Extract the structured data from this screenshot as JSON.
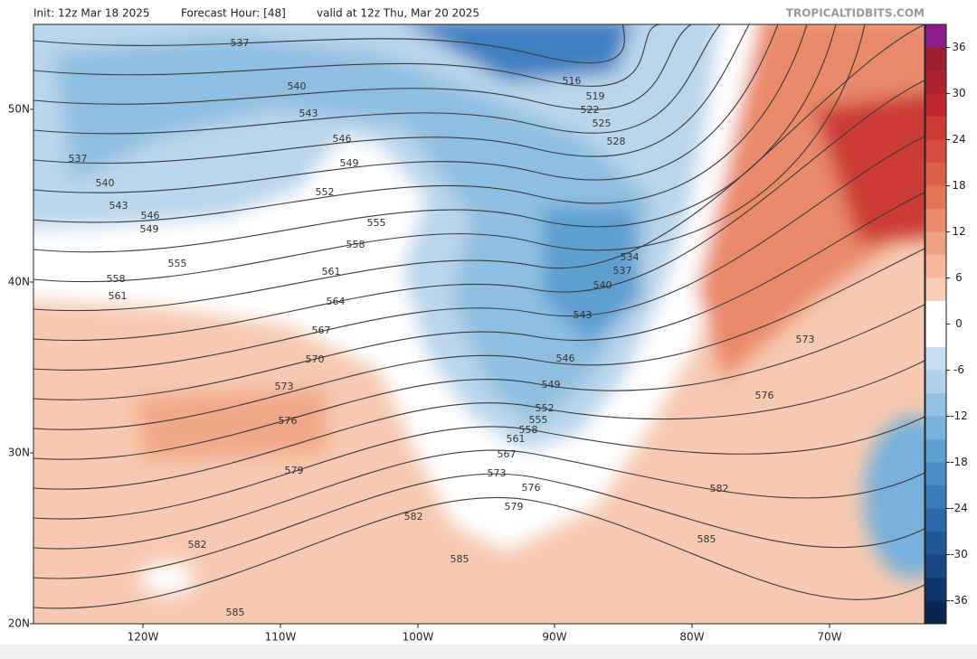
{
  "header": {
    "init": "Init: 12z Mar 18 2025",
    "forecast_hour": "Forecast Hour: [48]",
    "valid": "valid at 12z Thu, Mar 20 2025",
    "watermark": "TROPICALTIDBITS.COM"
  },
  "map": {
    "lat_labels": [
      "50N",
      "40N",
      "30N",
      "20N"
    ],
    "lon_labels": [
      "120W",
      "110W",
      "100W",
      "90W",
      "80W",
      "70W"
    ],
    "contour_labels": [
      537,
      540,
      543,
      546,
      549,
      552,
      555,
      558,
      561,
      564,
      567,
      570,
      573,
      576,
      579,
      582,
      585,
      582,
      585,
      537,
      540,
      543,
      546,
      549,
      555,
      558,
      561,
      516,
      519,
      522,
      525,
      528,
      534,
      537,
      540,
      543,
      546,
      549,
      552,
      555,
      558,
      561,
      567,
      573,
      576,
      579,
      582,
      585,
      573,
      576
    ]
  },
  "colorbar": {
    "lim": [
      -39,
      39
    ],
    "ticks": [
      36,
      30,
      24,
      18,
      12,
      6,
      0,
      -6,
      -12,
      -18,
      -24,
      -30,
      -36
    ],
    "colors": [
      "#0b2552",
      "#10356b",
      "#184681",
      "#225896",
      "#2d69a8",
      "#3a7bb8",
      "#4a8dc4",
      "#5d9fcf",
      "#78b1da",
      "#94c2e2",
      "#b0d1ea",
      "#c7dff0",
      "#ffffff",
      "#ffffff",
      "#f8cdb7",
      "#f4b89c",
      "#efa282",
      "#e98a6a",
      "#e27458",
      "#dc6049",
      "#d54c3f",
      "#cc3a36",
      "#c0282f",
      "#ae2230",
      "#9c1d2b",
      "#8b1d8d"
    ]
  }
}
